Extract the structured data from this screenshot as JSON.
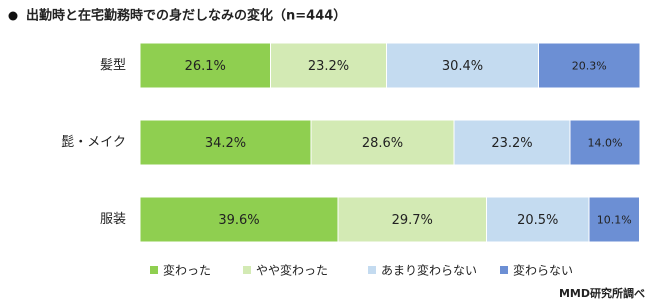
{
  "chart_data": {
    "type": "stacked-bar-horizontal",
    "title": "出勤時と在宅勤務時での身だしなみの変化（n=444）",
    "source": "MMD研究所調べ",
    "categories": [
      "髪型",
      "髭・メイク",
      "服装"
    ],
    "xlim": [
      0,
      100
    ],
    "series": [
      {
        "name": "変わった",
        "color": "#8fcf50",
        "values": [
          26.1,
          34.2,
          39.6
        ],
        "value_labels": [
          "26.1%",
          "34.2%",
          "39.6%"
        ]
      },
      {
        "name": "やや変わった",
        "color": "#d3eab4",
        "values": [
          23.2,
          28.6,
          29.7
        ],
        "value_labels": [
          "23.2%",
          "28.6%",
          "29.7%"
        ]
      },
      {
        "name": "あまり変わらない",
        "color": "#c4dbf0",
        "values": [
          30.4,
          23.2,
          20.5
        ],
        "value_labels": [
          "30.4%",
          "23.2%",
          "20.5%"
        ]
      },
      {
        "name": "変わらない",
        "color": "#6c8fd4",
        "values": [
          20.3,
          14.0,
          10.1
        ],
        "value_labels": [
          "20.3%",
          "14.0%",
          "10.1%"
        ]
      }
    ]
  }
}
